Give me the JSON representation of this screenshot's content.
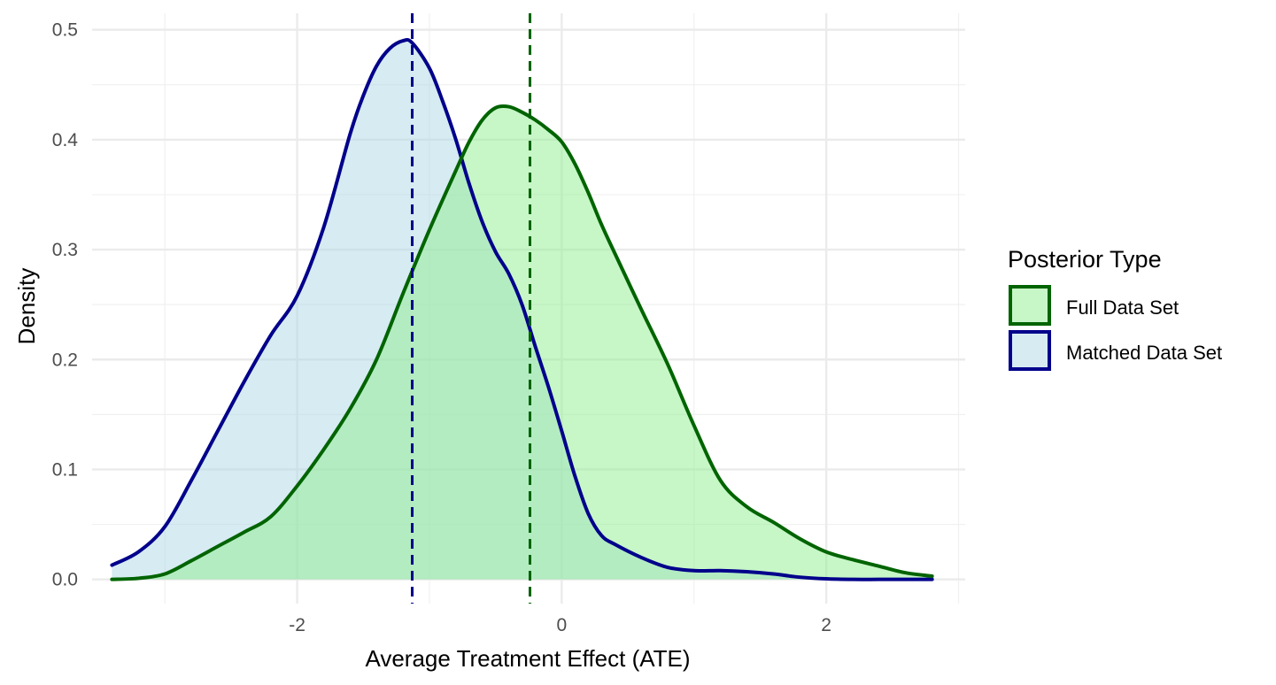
{
  "chart_data": {
    "type": "area",
    "title": "",
    "xlabel": "Average Treatment Effect (ATE)",
    "ylabel": "Density",
    "xlim": [
      -3.55,
      3.05
    ],
    "ylim": [
      -0.022,
      0.515
    ],
    "x_ticks": [
      -2,
      0,
      2
    ],
    "x_tick_labels": [
      "-2",
      "0",
      "2"
    ],
    "x_minor_ticks": [
      -3,
      -1,
      1,
      3
    ],
    "y_ticks": [
      0.0,
      0.1,
      0.2,
      0.3,
      0.4,
      0.5
    ],
    "y_tick_labels": [
      "0.0",
      "0.1",
      "0.2",
      "0.3",
      "0.4",
      "0.5"
    ],
    "y_minor_ticks": [
      0.05,
      0.15,
      0.25,
      0.35,
      0.45
    ],
    "grid": true,
    "legend": {
      "title": "Posterior Type",
      "position": "right",
      "entries": [
        "Full Data Set",
        "Matched Data Set"
      ]
    },
    "series": [
      {
        "name": "Matched Data Set",
        "line_color": "#00008b",
        "fill_color": "#add8e6",
        "fill_opacity": 0.5,
        "mean_line": -1.13,
        "x": [
          -3.4,
          -3.2,
          -3.0,
          -2.8,
          -2.6,
          -2.4,
          -2.2,
          -2.0,
          -1.8,
          -1.6,
          -1.5,
          -1.4,
          -1.3,
          -1.2,
          -1.13,
          -1.0,
          -0.9,
          -0.8,
          -0.7,
          -0.6,
          -0.5,
          -0.4,
          -0.3,
          -0.2,
          -0.1,
          0.0,
          0.1,
          0.2,
          0.3,
          0.4,
          0.6,
          0.8,
          1.0,
          1.2,
          1.4,
          1.6,
          1.8,
          2.0,
          2.2,
          2.4,
          2.6,
          2.8
        ],
        "y": [
          0.013,
          0.025,
          0.048,
          0.09,
          0.135,
          0.18,
          0.222,
          0.258,
          0.32,
          0.405,
          0.44,
          0.467,
          0.483,
          0.49,
          0.488,
          0.465,
          0.435,
          0.4,
          0.36,
          0.325,
          0.298,
          0.278,
          0.25,
          0.212,
          0.175,
          0.135,
          0.094,
          0.06,
          0.04,
          0.032,
          0.02,
          0.011,
          0.008,
          0.008,
          0.007,
          0.005,
          0.002,
          0.0005,
          0.0,
          0.0,
          0.0,
          0.0
        ]
      },
      {
        "name": "Full Data Set",
        "line_color": "#006400",
        "fill_color": "#90ee90",
        "fill_opacity": 0.5,
        "mean_line": -0.24,
        "x": [
          -3.4,
          -3.2,
          -3.0,
          -2.8,
          -2.6,
          -2.4,
          -2.2,
          -2.0,
          -1.8,
          -1.6,
          -1.4,
          -1.2,
          -1.0,
          -0.8,
          -0.7,
          -0.6,
          -0.5,
          -0.4,
          -0.3,
          -0.2,
          -0.1,
          0.0,
          0.1,
          0.2,
          0.3,
          0.4,
          0.6,
          0.8,
          1.0,
          1.2,
          1.4,
          1.6,
          1.8,
          2.0,
          2.2,
          2.4,
          2.6,
          2.8
        ],
        "y": [
          0.0,
          0.001,
          0.005,
          0.017,
          0.03,
          0.043,
          0.057,
          0.085,
          0.118,
          0.155,
          0.2,
          0.26,
          0.318,
          0.372,
          0.398,
          0.418,
          0.429,
          0.43,
          0.425,
          0.418,
          0.409,
          0.398,
          0.378,
          0.352,
          0.323,
          0.297,
          0.246,
          0.196,
          0.14,
          0.09,
          0.066,
          0.052,
          0.037,
          0.025,
          0.018,
          0.012,
          0.006,
          0.003
        ]
      }
    ]
  }
}
